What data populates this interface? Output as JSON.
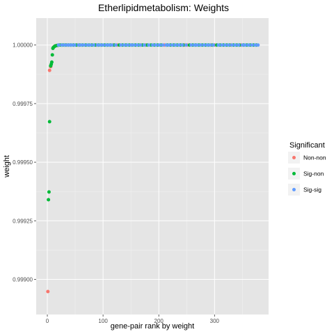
{
  "chart_data": {
    "type": "scatter",
    "title": "Etherlipidmetabolism: Weights",
    "xlabel": "gene-pair rank by weight",
    "ylabel": "weight",
    "xlim": [
      -20,
      397
    ],
    "ylim": [
      0.99885,
      1.000115
    ],
    "x_ticks": [
      0,
      100,
      200,
      300
    ],
    "x_tick_labels": [
      "0",
      "100",
      "200",
      "300"
    ],
    "y_ticks": [
      0.999,
      0.99925,
      0.9995,
      0.99975,
      1.0
    ],
    "y_tick_labels": [
      "0.99900",
      "0.99925",
      "0.99950",
      "0.99975",
      "1.00000"
    ],
    "grid": true,
    "background": "#e5e5e5",
    "legend": {
      "title": "Significant",
      "placement": "right",
      "entries": [
        {
          "name": "Non-non",
          "color": "#f8766d"
        },
        {
          "name": "Sig-non",
          "color": "#00ba38"
        },
        {
          "name": "Sig-sig",
          "color": "#619cff"
        }
      ]
    },
    "series": [
      {
        "name": "Non-non",
        "color": "#f8766d",
        "points": [
          [
            1,
            0.998948
          ],
          [
            4,
            0.999892
          ],
          [
            6,
            0.999908
          ],
          [
            12,
            0.999993
          ],
          [
            15,
            0.999997
          ],
          [
            35,
            1.0
          ],
          [
            55,
            1.0
          ],
          [
            88,
            1.0
          ],
          [
            118,
            1.0
          ],
          [
            126,
            1.0
          ],
          [
            168,
            1.0
          ],
          [
            176,
            1.0
          ],
          [
            210,
            1.0
          ],
          [
            246,
            1.0
          ],
          [
            251,
            1.0
          ],
          [
            293,
            1.0
          ],
          [
            300,
            1.0
          ],
          [
            330,
            1.0
          ],
          [
            348,
            1.0
          ]
        ]
      },
      {
        "name": "Sig-non",
        "color": "#00ba38",
        "points": [
          [
            2,
            0.99934
          ],
          [
            3,
            0.999373
          ],
          [
            4,
            0.999673
          ],
          [
            6,
            0.999911
          ],
          [
            7,
            0.999918
          ],
          [
            8,
            0.999927
          ],
          [
            9,
            0.999958
          ],
          [
            10,
            0.999986
          ],
          [
            11,
            0.99999
          ],
          [
            13,
            0.999994
          ],
          [
            14,
            0.999996
          ],
          [
            17,
            0.999998
          ],
          [
            19,
            0.999999
          ],
          [
            21,
            1.0
          ],
          [
            24,
            1.0
          ],
          [
            27,
            1.0
          ],
          [
            30,
            1.0
          ],
          [
            33,
            1.0
          ],
          [
            38,
            1.0
          ],
          [
            42,
            1.0
          ],
          [
            47,
            1.0
          ],
          [
            52,
            1.0
          ],
          [
            58,
            1.0
          ],
          [
            63,
            1.0
          ],
          [
            69,
            1.0
          ],
          [
            75,
            1.0
          ],
          [
            80,
            1.0
          ],
          [
            86,
            1.0
          ],
          [
            92,
            1.0
          ],
          [
            97,
            1.0
          ],
          [
            103,
            1.0
          ],
          [
            108,
            1.0
          ],
          [
            113,
            1.0
          ],
          [
            120,
            1.0
          ],
          [
            129,
            1.0
          ],
          [
            135,
            1.0
          ],
          [
            141,
            1.0
          ],
          [
            147,
            1.0
          ],
          [
            152,
            1.0
          ],
          [
            158,
            1.0
          ],
          [
            164,
            1.0
          ],
          [
            171,
            1.0
          ],
          [
            179,
            1.0
          ],
          [
            186,
            1.0
          ],
          [
            192,
            1.0
          ],
          [
            198,
            1.0
          ],
          [
            204,
            1.0
          ],
          [
            215,
            1.0
          ],
          [
            221,
            1.0
          ],
          [
            227,
            1.0
          ],
          [
            233,
            1.0
          ],
          [
            239,
            1.0
          ],
          [
            244,
            1.0
          ],
          [
            255,
            1.0
          ],
          [
            261,
            1.0
          ],
          [
            266,
            1.0
          ],
          [
            272,
            1.0
          ],
          [
            278,
            1.0
          ],
          [
            284,
            1.0
          ],
          [
            289,
            1.0
          ],
          [
            296,
            1.0
          ],
          [
            304,
            1.0
          ],
          [
            310,
            1.0
          ],
          [
            316,
            1.0
          ],
          [
            322,
            1.0
          ],
          [
            327,
            1.0
          ],
          [
            334,
            1.0
          ],
          [
            340,
            1.0
          ],
          [
            345,
            1.0
          ],
          [
            352,
            1.0
          ],
          [
            358,
            1.0
          ],
          [
            364,
            1.0
          ],
          [
            370,
            1.0
          ],
          [
            375,
            1.0
          ]
        ]
      },
      {
        "name": "Sig-sig",
        "color": "#619cff",
        "points": [
          [
            20,
            1.0
          ],
          [
            26,
            1.0
          ],
          [
            31,
            1.0
          ],
          [
            36,
            1.0
          ],
          [
            40,
            1.0
          ],
          [
            44,
            1.0
          ],
          [
            49,
            1.0
          ],
          [
            56,
            1.0
          ],
          [
            61,
            1.0
          ],
          [
            66,
            1.0
          ],
          [
            72,
            1.0
          ],
          [
            77,
            1.0
          ],
          [
            83,
            1.0
          ],
          [
            90,
            1.0
          ],
          [
            95,
            1.0
          ],
          [
            100,
            1.0
          ],
          [
            106,
            1.0
          ],
          [
            111,
            1.0
          ],
          [
            116,
            1.0
          ],
          [
            123,
            1.0
          ],
          [
            132,
            1.0
          ],
          [
            138,
            1.0
          ],
          [
            144,
            1.0
          ],
          [
            150,
            1.0
          ],
          [
            155,
            1.0
          ],
          [
            161,
            1.0
          ],
          [
            167,
            1.0
          ],
          [
            174,
            1.0
          ],
          [
            182,
            1.0
          ],
          [
            189,
            1.0
          ],
          [
            195,
            1.0
          ],
          [
            201,
            1.0
          ],
          [
            207,
            1.0
          ],
          [
            213,
            1.0
          ],
          [
            218,
            1.0
          ],
          [
            224,
            1.0
          ],
          [
            230,
            1.0
          ],
          [
            236,
            1.0
          ],
          [
            242,
            1.0
          ],
          [
            249,
            1.0
          ],
          [
            258,
            1.0
          ],
          [
            264,
            1.0
          ],
          [
            269,
            1.0
          ],
          [
            275,
            1.0
          ],
          [
            281,
            1.0
          ],
          [
            287,
            1.0
          ],
          [
            292,
            1.0
          ],
          [
            298,
            1.0
          ],
          [
            307,
            1.0
          ],
          [
            313,
            1.0
          ],
          [
            319,
            1.0
          ],
          [
            325,
            1.0
          ],
          [
            331,
            1.0
          ],
          [
            337,
            1.0
          ],
          [
            343,
            1.0
          ],
          [
            350,
            1.0
          ],
          [
            355,
            1.0
          ],
          [
            361,
            1.0
          ],
          [
            367,
            1.0
          ],
          [
            373,
            1.0
          ],
          [
            378,
            1.0
          ]
        ]
      }
    ]
  }
}
